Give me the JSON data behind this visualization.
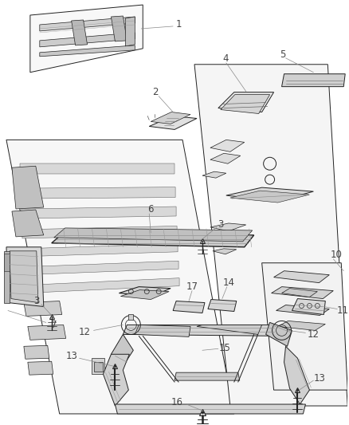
{
  "background_color": "#ffffff",
  "fig_width": 4.38,
  "fig_height": 5.33,
  "dpi": 100,
  "image_b64": ""
}
